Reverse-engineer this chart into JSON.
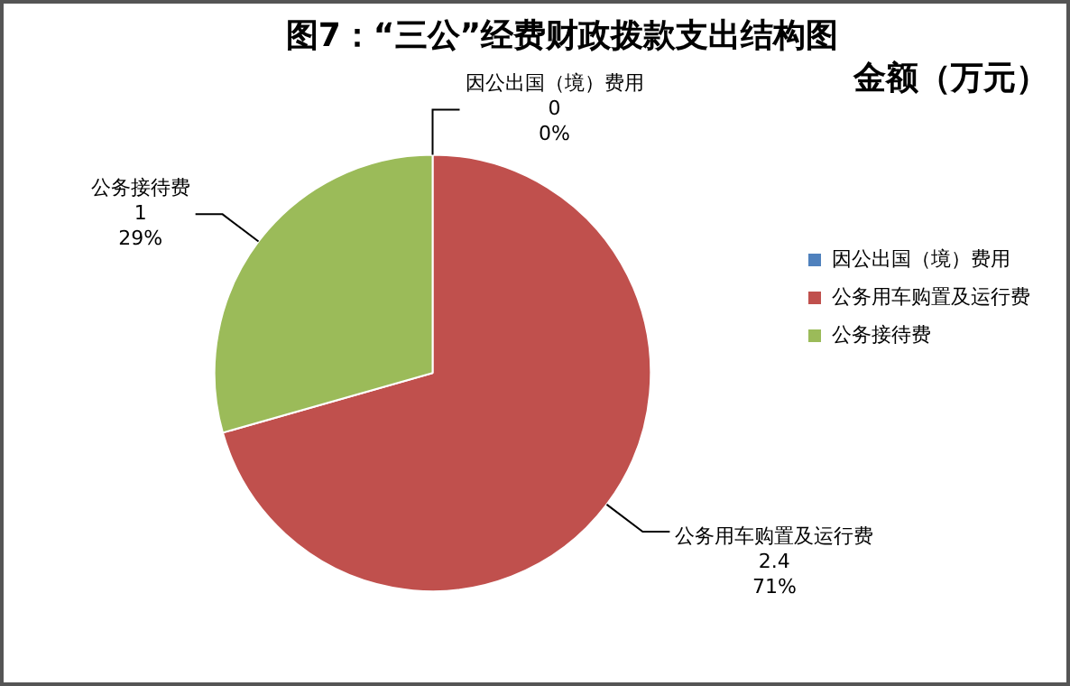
{
  "chart_data": {
    "type": "pie",
    "title": "图7：“三公”经费财政拨款支出结构图",
    "subtitle": "金额（万元）",
    "categories": [
      "因公出国（境）费用",
      "公务用车购置及运行费",
      "公务接待费"
    ],
    "values": [
      0,
      2.4,
      1
    ],
    "colors": [
      "#4f81bd",
      "#c0504d",
      "#9bbb59"
    ],
    "value_labels": [
      "0\n0%",
      "2.4\n71%",
      "1\n29%"
    ],
    "legend": "right"
  }
}
